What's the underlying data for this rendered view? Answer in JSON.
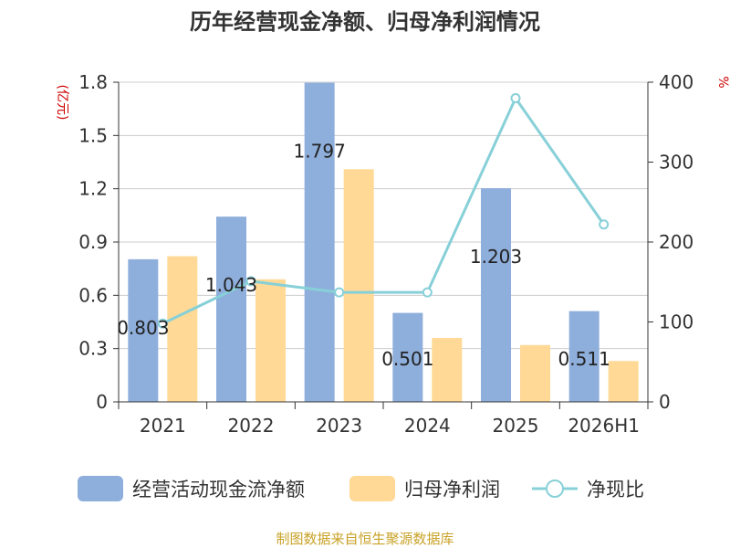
{
  "title": "历年经营现金净额、归母净利润情况",
  "source": "制图数据来自恒生聚源数据库",
  "chart_data": {
    "type": "bar",
    "categories": [
      "2021",
      "2022",
      "2023",
      "2024",
      "2025",
      "2026H1"
    ],
    "y_left": {
      "unit_label": "(亿元)",
      "min": 0,
      "max": 1.8,
      "ticks": [
        "0",
        "0.3",
        "0.6",
        "0.9",
        "1.2",
        "1.5",
        "1.8"
      ]
    },
    "y_right": {
      "unit_label": "%",
      "min": 0,
      "max": 400,
      "ticks": [
        "0",
        "100",
        "200",
        "300",
        "400"
      ]
    },
    "series": [
      {
        "name": "经营活动现金流净额",
        "type": "bar",
        "axis": "left",
        "color": "#8eaedb",
        "values": [
          0.803,
          1.043,
          1.797,
          0.501,
          1.203,
          0.511
        ],
        "labels": [
          "0.803",
          "1.043",
          "1.797",
          "0.501",
          "1.203",
          "0.511"
        ]
      },
      {
        "name": "归母净利润",
        "type": "bar",
        "axis": "left",
        "color": "#ffd995",
        "values": [
          0.82,
          0.69,
          1.31,
          0.36,
          0.32,
          0.23
        ]
      },
      {
        "name": "净现比",
        "type": "line",
        "axis": "right",
        "color": "#87d0d8",
        "values": [
          98,
          151,
          137,
          137,
          380,
          222
        ]
      }
    ],
    "legend_position": "bottom",
    "grid": true
  }
}
